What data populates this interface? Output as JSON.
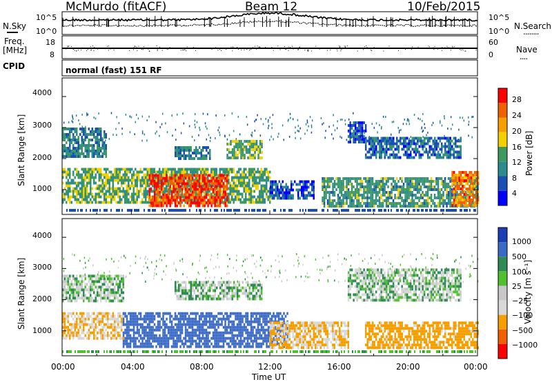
{
  "header": {
    "station": "McMurdo (fitACF)",
    "beam": "Beam 12",
    "date": "10/Feb/2015"
  },
  "noise_panel": {
    "left_label": "N.Sky",
    "left_ticks": [
      "10^5",
      "10^0"
    ],
    "right_ticks": [
      "10^5",
      "10^0"
    ],
    "right_label": "N.Search",
    "right_marker": "........"
  },
  "freq_panel": {
    "left_label_1": "Freq.",
    "left_label_2": "[MHz]",
    "left_ticks": [
      "18",
      "8"
    ],
    "right_ticks": [
      "60",
      "0"
    ],
    "right_label": "Nave",
    "right_marker": "....",
    "cpid_label": "CPID",
    "cpid_text": "normal (fast) 151 RF"
  },
  "power_panel": {
    "ylabel": "Slant Range [km]",
    "yticks": [
      "4000",
      "3000",
      "2000",
      "1000"
    ],
    "colorbar_label": "Power [dB]",
    "colorbar_ticks": [
      "28",
      "24",
      "20",
      "16",
      "12",
      "8",
      "4"
    ],
    "colors": [
      "#0000ff",
      "#1a4fb5",
      "#2c8c8c",
      "#3c9a60",
      "#f5d000",
      "#f5a000",
      "#f06000",
      "#ff0000"
    ]
  },
  "velocity_panel": {
    "ylabel": "Slant Range [km]",
    "yticks": [
      "4000",
      "3000",
      "2000",
      "1000"
    ],
    "colorbar_label": "Velocity [m s⁻¹]",
    "colorbar_ticks": [
      "1000",
      "500",
      "100",
      "25",
      "−25",
      "−100",
      "−500",
      "−1000"
    ],
    "colors": [
      "#1a3fb5",
      "#3a6ac5",
      "#2e8a55",
      "#50c030",
      "#c8c8c8",
      "#d8d8d8",
      "#f5a000",
      "#f06000",
      "#ff0000"
    ]
  },
  "xaxis": {
    "ticks": [
      "00:00",
      "04:00",
      "08:00",
      "12:00",
      "16:00",
      "20:00",
      "00:00"
    ],
    "label": "Time UT"
  },
  "chart_data": {
    "type": "heatmap",
    "title": "McMurdo (fitACF) Beam 12 10/Feb/2015",
    "xlabel": "Time UT",
    "ylabel": "Slant Range [km]",
    "x_range": [
      "00:00",
      "24:00"
    ],
    "ylim": [
      200,
      4600
    ],
    "panels": [
      {
        "name": "Power",
        "unit": "dB",
        "colorbar_range": [
          0,
          30
        ],
        "regions": [
          {
            "t_start": 0.0,
            "t_end": 12.0,
            "range_start": 600,
            "range_end": 1700,
            "value": 14
          },
          {
            "t_start": 5.0,
            "t_end": 9.5,
            "range_start": 500,
            "range_end": 1500,
            "value": 28
          },
          {
            "t_start": 0.0,
            "t_end": 2.5,
            "range_start": 2100,
            "range_end": 3000,
            "value": 10
          },
          {
            "t_start": 6.5,
            "t_end": 8.5,
            "range_start": 2000,
            "range_end": 2400,
            "value": 10
          },
          {
            "t_start": 9.5,
            "t_end": 11.5,
            "range_start": 2000,
            "range_end": 2600,
            "value": 14
          },
          {
            "t_start": 12.0,
            "t_end": 14.5,
            "range_start": 700,
            "range_end": 1300,
            "value": 6
          },
          {
            "t_start": 16.5,
            "t_end": 17.5,
            "range_start": 2500,
            "range_end": 3200,
            "value": 6
          },
          {
            "t_start": 17.5,
            "t_end": 23.0,
            "range_start": 2000,
            "range_end": 2700,
            "value": 8
          },
          {
            "t_start": 15.0,
            "t_end": 24.0,
            "range_start": 500,
            "range_end": 1400,
            "value": 12
          },
          {
            "t_start": 22.5,
            "t_end": 24.0,
            "range_start": 500,
            "range_end": 1600,
            "value": 24
          }
        ]
      },
      {
        "name": "Velocity",
        "unit": "m s-1",
        "colorbar_range": [
          -1000,
          1000
        ],
        "regions": [
          {
            "t_start": 0.0,
            "t_end": 3.5,
            "range_start": 2000,
            "range_end": 2800,
            "value": 0
          },
          {
            "t_start": 0.0,
            "t_end": 3.5,
            "range_start": 800,
            "range_end": 1600,
            "value": -100
          },
          {
            "t_start": 3.5,
            "t_end": 13.0,
            "range_start": 500,
            "range_end": 1600,
            "value": 200
          },
          {
            "t_start": 6.5,
            "t_end": 11.5,
            "range_start": 2000,
            "range_end": 2600,
            "value": 0
          },
          {
            "t_start": 12.0,
            "t_end": 16.5,
            "range_start": 500,
            "range_end": 1300,
            "value": -100
          },
          {
            "t_start": 17.5,
            "t_end": 24.0,
            "range_start": 500,
            "range_end": 1300,
            "value": -150
          },
          {
            "t_start": 16.5,
            "t_end": 23.0,
            "range_start": 2000,
            "range_end": 3000,
            "value": 0
          }
        ]
      }
    ]
  }
}
